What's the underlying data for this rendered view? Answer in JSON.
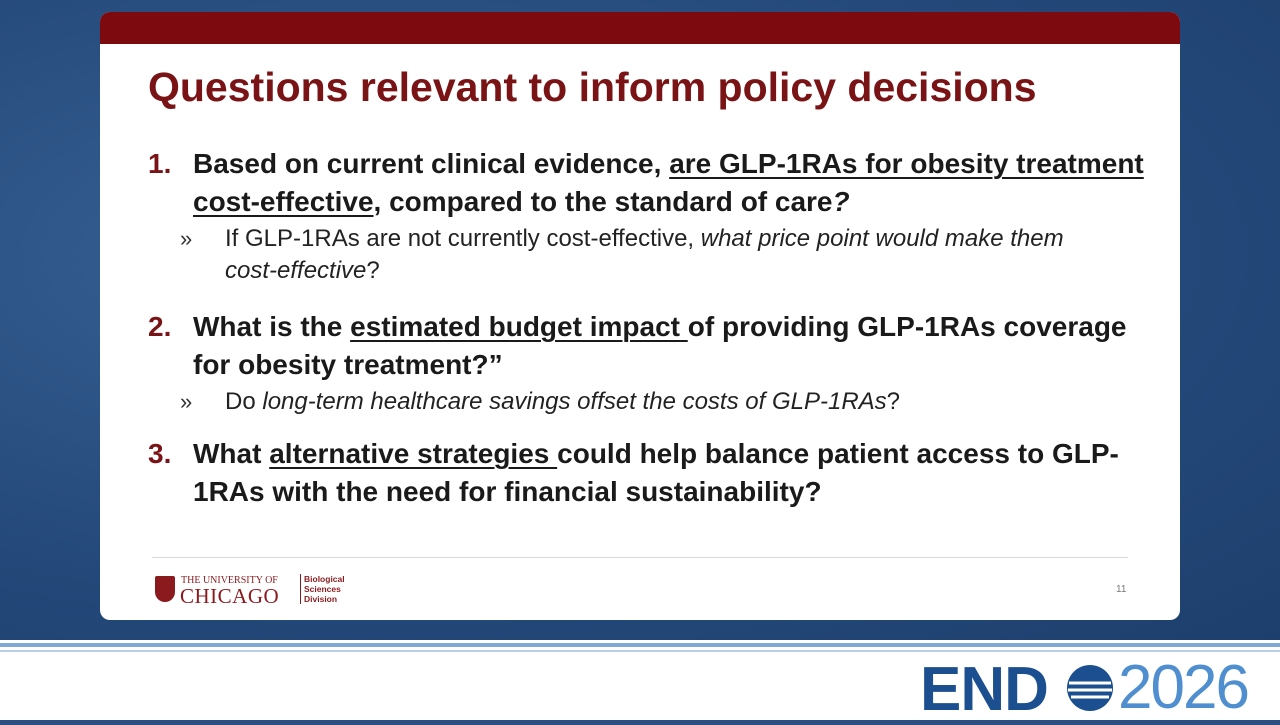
{
  "slide": {
    "title": "Questions relevant to inform policy decisions",
    "items": [
      {
        "number": "1.",
        "runs": [
          {
            "text": "Based on current clinical evidence, "
          },
          {
            "text": "are GLP-1RAs for obesity treatment cost-effective",
            "underline": true
          },
          {
            "text": ", compared to the standard of care"
          },
          {
            "text": "?",
            "italic": true
          }
        ],
        "sub": [
          {
            "marker": "»",
            "runs": [
              {
                "text": "If GLP-1RAs are not currently cost-effective, "
              },
              {
                "text": "what price point would make them cost-effective",
                "italic": true
              },
              {
                "text": "?"
              }
            ]
          }
        ]
      },
      {
        "number": "2.",
        "runs": [
          {
            "text": "What is the "
          },
          {
            "text": "estimated budget impact ",
            "underline": true
          },
          {
            "text": "of providing GLP-1RAs coverage for obesity treatment?”"
          }
        ],
        "sub": [
          {
            "marker": "»",
            "runs": [
              {
                "text": "Do "
              },
              {
                "text": "long-term healthcare savings offset the costs of GLP-1RAs",
                "italic": true
              },
              {
                "text": "?"
              }
            ]
          }
        ]
      },
      {
        "number": "3.",
        "runs": [
          {
            "text": "What "
          },
          {
            "text": "alternative strategies ",
            "underline": true
          },
          {
            "text": "could help balance patient access to GLP-1RAs with the need for financial sustainability?"
          }
        ],
        "sub": []
      }
    ],
    "footer": {
      "university_line": "THE UNIVERSITY OF",
      "university_name": "CHICAGO",
      "division": [
        "Biological",
        "Sciences",
        "Division"
      ],
      "page_number": "11"
    }
  },
  "banner": {
    "left": "END",
    "right": "2026"
  }
}
